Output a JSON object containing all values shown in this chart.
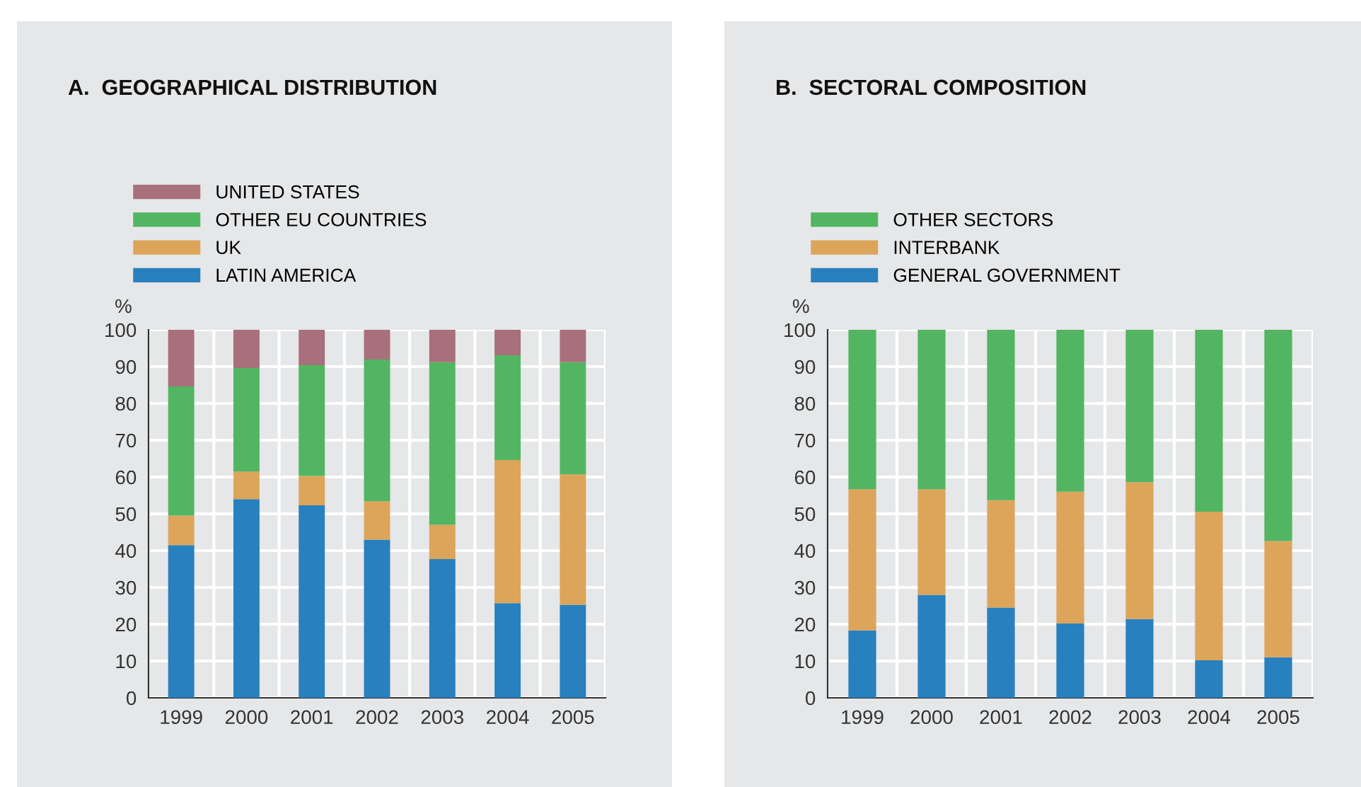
{
  "chart_data": [
    {
      "type": "bar",
      "title": "A.  GEOGRAPHICAL DISTRIBUTION",
      "ylabel": "%",
      "stacked": true,
      "legend": "top left",
      "grid": true,
      "categories": [
        "1999",
        "2000",
        "2001",
        "2002",
        "2003",
        "2004",
        "2005"
      ],
      "ylim": [
        0,
        100
      ],
      "yticks": [
        0,
        10,
        20,
        30,
        40,
        50,
        60,
        70,
        80,
        90,
        100
      ],
      "series": [
        {
          "name": "LATIN AMERICA",
          "color": "#2880be",
          "values": [
            41.5,
            54,
            52.3,
            43,
            37.7,
            25.7,
            25.3
          ]
        },
        {
          "name": "UK",
          "color": "#dca55a",
          "values": [
            8,
            7.5,
            8,
            10.4,
            9.3,
            38.9,
            35.4
          ]
        },
        {
          "name": "OTHER EU COUNTRIES",
          "color": "#52b562",
          "values": [
            35.1,
            28.1,
            30.1,
            38.5,
            44.2,
            28.5,
            30.5
          ]
        },
        {
          "name": "UNITED STATES",
          "color": "#a8707a",
          "values": [
            15.4,
            10.4,
            9.6,
            8.1,
            8.8,
            6.9,
            8.8
          ]
        }
      ]
    },
    {
      "type": "bar",
      "title": "B.  SECTORAL COMPOSITION",
      "ylabel": "%",
      "stacked": true,
      "legend": "top left",
      "grid": true,
      "categories": [
        "1999",
        "2000",
        "2001",
        "2002",
        "2003",
        "2004",
        "2005"
      ],
      "ylim": [
        0,
        100
      ],
      "yticks": [
        0,
        10,
        20,
        30,
        40,
        50,
        60,
        70,
        80,
        90,
        100
      ],
      "series": [
        {
          "name": "GENERAL GOVERNMENT",
          "color": "#2880be",
          "values": [
            18.3,
            28,
            24.5,
            20.2,
            21.4,
            10.2,
            11
          ]
        },
        {
          "name": "INTERBANK",
          "color": "#dca55a",
          "values": [
            38.4,
            28.7,
            29.2,
            35.8,
            37.2,
            40.4,
            31.6
          ]
        },
        {
          "name": "OTHER SECTORS",
          "color": "#52b562",
          "values": [
            43.3,
            43.3,
            46.3,
            44,
            41.4,
            49.4,
            57.4
          ]
        }
      ]
    }
  ]
}
